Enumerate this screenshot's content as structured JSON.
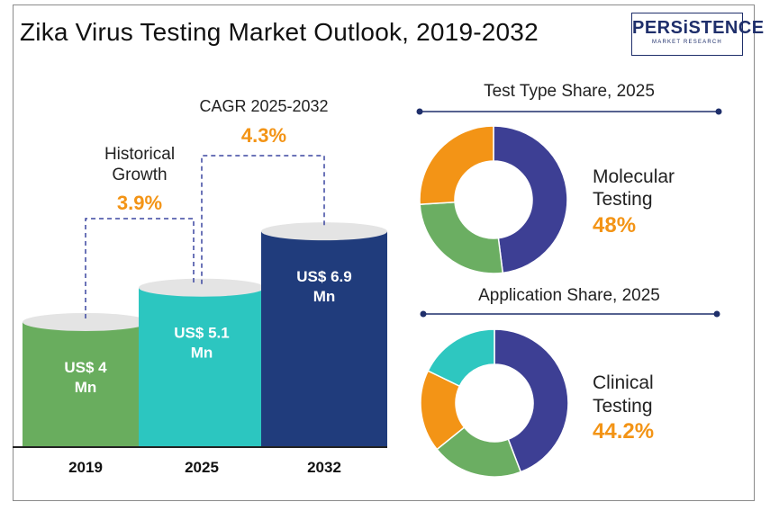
{
  "title": "Zika Virus Testing Market Outlook, 2019-2032",
  "logo": {
    "main": "PERSiSTENCE",
    "sub": "MARKET RESEARCH"
  },
  "colors": {
    "bar2019": "#69ad5e",
    "bar2025": "#2cc6c0",
    "bar2032": "#203c7c",
    "navy": "#3d3f94",
    "green": "#6bae62",
    "orange": "#f39416",
    "teal": "#2ec7c0",
    "cap": "#e4e4e4",
    "accent": "#f39416",
    "dash": "#3b46a0"
  },
  "annotations": {
    "historical_label_line1": "Historical",
    "historical_label_line2": "Growth",
    "historical_value": "3.9%",
    "cagr_label": "CAGR 2025-2032",
    "cagr_value": "4.3%"
  },
  "chart_data": [
    {
      "type": "bar",
      "categories": [
        "2019",
        "2025",
        "2032"
      ],
      "values": [
        4,
        5.1,
        6.9
      ],
      "value_labels_line1": [
        "US$ 4",
        "US$ 5.1",
        "US$ 6.9"
      ],
      "value_labels_line2": [
        "Mn",
        "Mn",
        "Mn"
      ],
      "unit": "US$ Mn"
    },
    {
      "type": "pie",
      "title": "Test Type  Share, 2025",
      "highlight_label_line1": "Molecular",
      "highlight_label_line2": "Testing",
      "highlight_value": "48%",
      "slices": [
        {
          "value": 48,
          "color": "#3d3f94"
        },
        {
          "value": 26,
          "color": "#6bae62"
        },
        {
          "value": 26,
          "color": "#f39416"
        }
      ]
    },
    {
      "type": "pie",
      "title": "Application Share, 2025",
      "highlight_label_line1": "Clinical",
      "highlight_label_line2": "Testing",
      "highlight_value": "44.2%",
      "slices": [
        {
          "value": 44.2,
          "color": "#3d3f94"
        },
        {
          "value": 20,
          "color": "#6bae62"
        },
        {
          "value": 18,
          "color": "#f39416"
        },
        {
          "value": 17.8,
          "color": "#2ec7c0"
        }
      ]
    }
  ]
}
